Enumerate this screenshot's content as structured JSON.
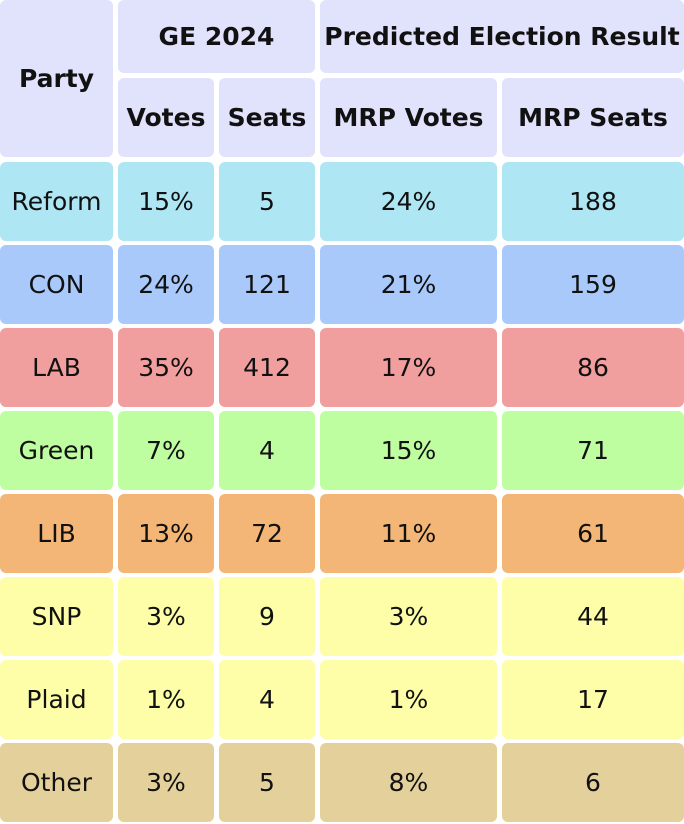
{
  "table": {
    "headers": {
      "party": "Party",
      "ge_group": "GE 2024",
      "predicted_group": "Predicted Election Result",
      "votes": "Votes",
      "seats": "Seats",
      "mrp_votes": "MRP Votes",
      "mrp_seats": "MRP Seats"
    },
    "rows": [
      {
        "party": "Reform",
        "votes": "15%",
        "seats": "5",
        "mrp_votes": "24%",
        "mrp_seats": "188",
        "color": "#afe6f3"
      },
      {
        "party": "CON",
        "votes": "24%",
        "seats": "121",
        "mrp_votes": "21%",
        "mrp_seats": "159",
        "color": "#a8c9fa"
      },
      {
        "party": "LAB",
        "votes": "35%",
        "seats": "412",
        "mrp_votes": "17%",
        "mrp_seats": "86",
        "color": "#f19e9e"
      },
      {
        "party": "Green",
        "votes": "7%",
        "seats": "4",
        "mrp_votes": "15%",
        "mrp_seats": "71",
        "color": "#bffda1"
      },
      {
        "party": "LIB",
        "votes": "13%",
        "seats": "72",
        "mrp_votes": "11%",
        "mrp_seats": "61",
        "color": "#f3b677"
      },
      {
        "party": "SNP",
        "votes": "3%",
        "seats": "9",
        "mrp_votes": "3%",
        "mrp_seats": "44",
        "color": "#fdfea7"
      },
      {
        "party": "Plaid",
        "votes": "1%",
        "seats": "4",
        "mrp_votes": "1%",
        "mrp_seats": "17",
        "color": "#fdfea7"
      },
      {
        "party": "Other",
        "votes": "3%",
        "seats": "5",
        "mrp_votes": "8%",
        "mrp_seats": "6",
        "color": "#e3d09a"
      }
    ]
  }
}
